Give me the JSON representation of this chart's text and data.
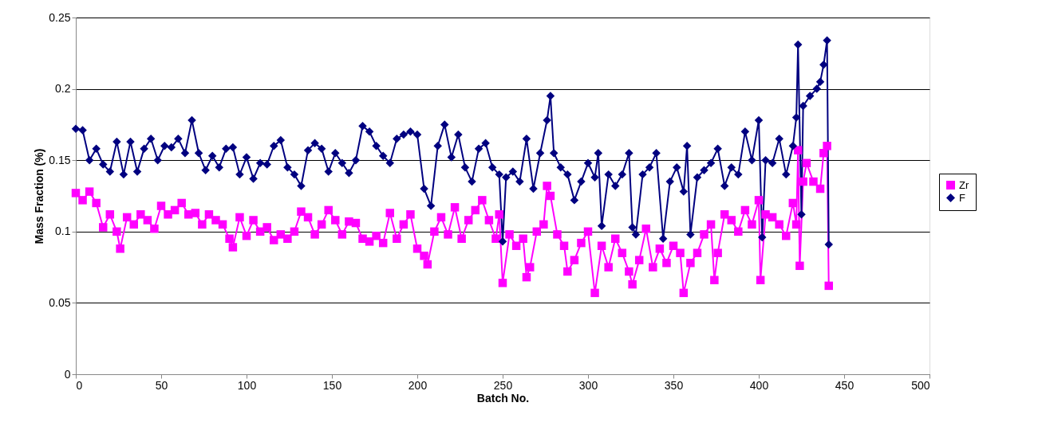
{
  "chart_data": {
    "type": "line",
    "xlabel": "Batch No.",
    "ylabel": "Mass Fraction (%)",
    "xlim": [
      0,
      500
    ],
    "xticks": [
      0,
      50,
      100,
      150,
      200,
      250,
      300,
      350,
      400,
      450,
      500
    ],
    "ylim": [
      0,
      0.25
    ],
    "yticks": [
      0,
      0.05,
      0.1,
      0.15,
      0.2,
      0.25
    ],
    "grid": "y",
    "legend": "right",
    "line_style": "solid",
    "series": [
      {
        "name": "Zr",
        "color": "#ff00ff",
        "marker": "square",
        "x": [
          0,
          4,
          8,
          12,
          16,
          20,
          24,
          26,
          30,
          34,
          38,
          42,
          46,
          50,
          54,
          58,
          62,
          66,
          70,
          74,
          78,
          82,
          86,
          90,
          92,
          96,
          100,
          104,
          108,
          112,
          116,
          120,
          124,
          128,
          132,
          136,
          140,
          144,
          148,
          152,
          156,
          160,
          164,
          168,
          172,
          176,
          180,
          184,
          188,
          192,
          196,
          200,
          204,
          206,
          210,
          214,
          218,
          222,
          226,
          230,
          234,
          238,
          242,
          246,
          248,
          250,
          254,
          258,
          262,
          264,
          266,
          270,
          274,
          276,
          278,
          282,
          286,
          288,
          292,
          296,
          300,
          304,
          308,
          312,
          316,
          320,
          324,
          326,
          330,
          334,
          338,
          342,
          346,
          350,
          354,
          356,
          360,
          364,
          368,
          372,
          374,
          376,
          380,
          384,
          388,
          392,
          396,
          400,
          401,
          404,
          408,
          412,
          416,
          420,
          422,
          423,
          424,
          426,
          428,
          432,
          436,
          438,
          440,
          441
        ],
        "values": [
          0.127,
          0.122,
          0.128,
          0.12,
          0.103,
          0.112,
          0.1,
          0.088,
          0.11,
          0.105,
          0.112,
          0.108,
          0.102,
          0.118,
          0.112,
          0.115,
          0.12,
          0.112,
          0.113,
          0.105,
          0.112,
          0.108,
          0.105,
          0.095,
          0.089,
          0.11,
          0.097,
          0.108,
          0.1,
          0.103,
          0.094,
          0.098,
          0.095,
          0.1,
          0.114,
          0.11,
          0.098,
          0.105,
          0.115,
          0.108,
          0.098,
          0.107,
          0.106,
          0.095,
          0.093,
          0.097,
          0.092,
          0.113,
          0.095,
          0.105,
          0.112,
          0.088,
          0.083,
          0.077,
          0.1,
          0.11,
          0.098,
          0.117,
          0.095,
          0.108,
          0.115,
          0.122,
          0.108,
          0.095,
          0.112,
          0.064,
          0.098,
          0.09,
          0.095,
          0.068,
          0.075,
          0.1,
          0.105,
          0.132,
          0.125,
          0.098,
          0.09,
          0.072,
          0.08,
          0.092,
          0.1,
          0.057,
          0.09,
          0.075,
          0.095,
          0.085,
          0.072,
          0.063,
          0.08,
          0.102,
          0.075,
          0.088,
          0.078,
          0.09,
          0.085,
          0.057,
          0.078,
          0.085,
          0.098,
          0.105,
          0.066,
          0.085,
          0.112,
          0.108,
          0.1,
          0.115,
          0.105,
          0.122,
          0.066,
          0.112,
          0.11,
          0.105,
          0.097,
          0.12,
          0.105,
          0.157,
          0.076,
          0.135,
          0.148,
          0.135,
          0.13,
          0.155,
          0.16,
          0.062
        ]
      },
      {
        "name": "F",
        "color": "#000080",
        "marker": "diamond",
        "x": [
          0,
          4,
          8,
          12,
          16,
          20,
          24,
          28,
          32,
          36,
          40,
          44,
          48,
          52,
          56,
          60,
          64,
          68,
          72,
          76,
          80,
          84,
          88,
          92,
          96,
          100,
          104,
          108,
          112,
          116,
          120,
          124,
          128,
          132,
          136,
          140,
          144,
          148,
          152,
          156,
          160,
          164,
          168,
          172,
          176,
          180,
          184,
          188,
          192,
          196,
          200,
          204,
          208,
          212,
          216,
          220,
          224,
          228,
          232,
          236,
          240,
          244,
          248,
          250,
          252,
          256,
          260,
          264,
          268,
          272,
          276,
          278,
          280,
          284,
          288,
          292,
          296,
          300,
          304,
          306,
          308,
          312,
          316,
          320,
          324,
          326,
          328,
          332,
          336,
          340,
          344,
          348,
          352,
          356,
          358,
          360,
          364,
          368,
          372,
          376,
          380,
          384,
          388,
          392,
          396,
          400,
          402,
          404,
          408,
          412,
          416,
          420,
          422,
          423,
          425,
          426,
          430,
          434,
          436,
          438,
          440,
          441
        ],
        "values": [
          0.172,
          0.171,
          0.15,
          0.158,
          0.147,
          0.142,
          0.163,
          0.14,
          0.163,
          0.142,
          0.158,
          0.165,
          0.15,
          0.16,
          0.159,
          0.165,
          0.155,
          0.178,
          0.155,
          0.143,
          0.153,
          0.145,
          0.158,
          0.159,
          0.14,
          0.152,
          0.137,
          0.148,
          0.147,
          0.16,
          0.164,
          0.145,
          0.14,
          0.132,
          0.157,
          0.162,
          0.158,
          0.142,
          0.155,
          0.148,
          0.141,
          0.15,
          0.174,
          0.17,
          0.16,
          0.153,
          0.148,
          0.165,
          0.168,
          0.17,
          0.168,
          0.13,
          0.118,
          0.16,
          0.175,
          0.152,
          0.168,
          0.145,
          0.135,
          0.158,
          0.162,
          0.145,
          0.14,
          0.093,
          0.138,
          0.142,
          0.135,
          0.165,
          0.13,
          0.155,
          0.178,
          0.195,
          0.155,
          0.145,
          0.14,
          0.122,
          0.135,
          0.148,
          0.138,
          0.155,
          0.104,
          0.14,
          0.132,
          0.14,
          0.155,
          0.103,
          0.098,
          0.14,
          0.145,
          0.155,
          0.095,
          0.135,
          0.145,
          0.128,
          0.16,
          0.098,
          0.138,
          0.143,
          0.148,
          0.158,
          0.132,
          0.145,
          0.14,
          0.17,
          0.15,
          0.178,
          0.096,
          0.15,
          0.148,
          0.165,
          0.14,
          0.16,
          0.18,
          0.231,
          0.112,
          0.188,
          0.195,
          0.2,
          0.205,
          0.217,
          0.234,
          0.091
        ]
      }
    ]
  }
}
